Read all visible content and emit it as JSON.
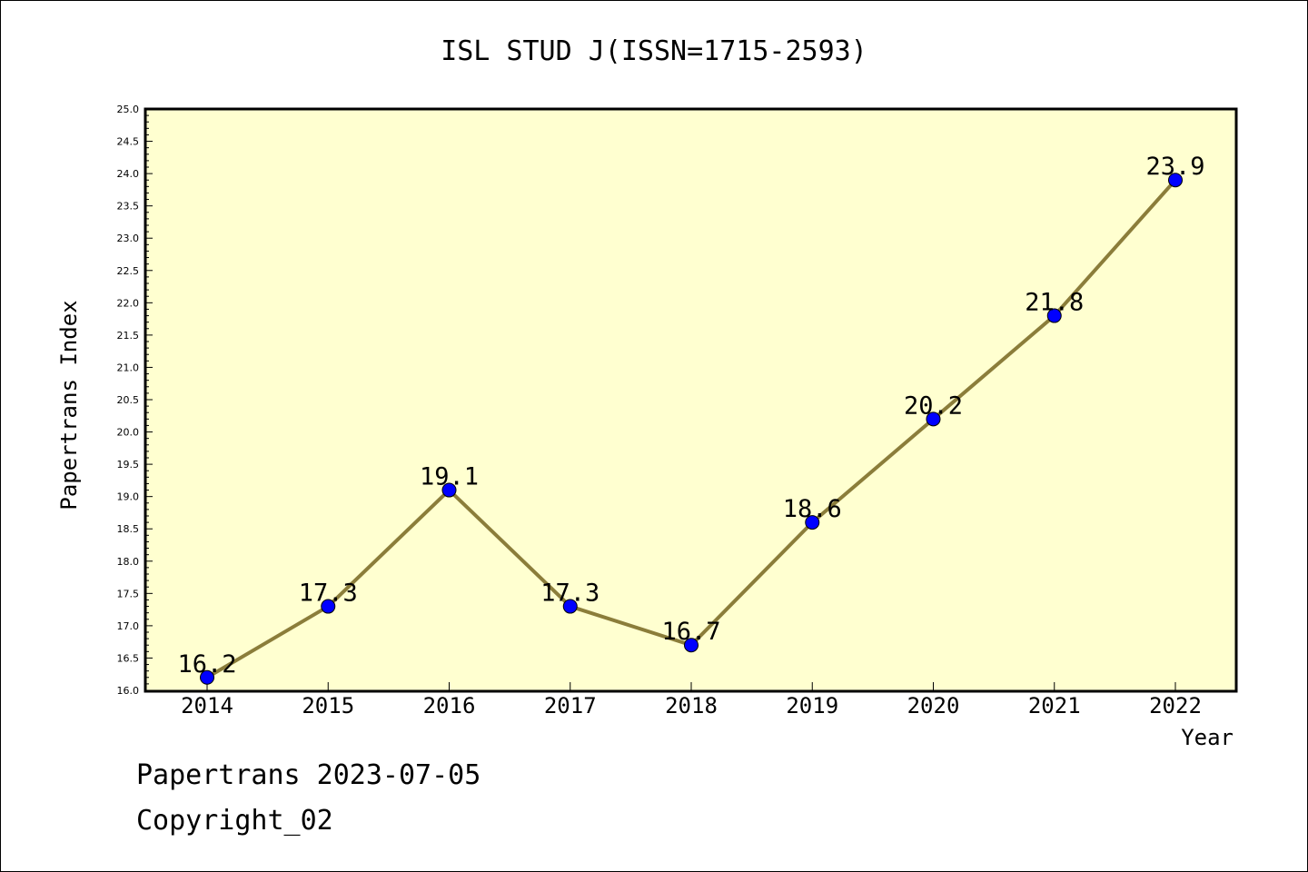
{
  "chart_data": {
    "type": "line",
    "title": "ISL STUD J(ISSN=1715-2593)",
    "xlabel": "Year",
    "ylabel": "Papertrans Index",
    "categories": [
      "2014",
      "2015",
      "2016",
      "2017",
      "2018",
      "2019",
      "2020",
      "2021",
      "2022"
    ],
    "series": [
      {
        "values": [
          16.2,
          17.3,
          19.1,
          17.3,
          16.7,
          18.6,
          20.2,
          21.8,
          23.9
        ],
        "data_labels": [
          "16.2",
          "17.3",
          "19.1",
          "17.3",
          "16.7",
          "18.6",
          "20.2",
          "21.8",
          "23.9"
        ],
        "line_color": "#8b7d3a",
        "marker_color": "#0000ff"
      }
    ],
    "ylim": [
      16.0,
      25.0
    ],
    "yticks": [
      "16.0",
      "16.5",
      "17.0",
      "17.5",
      "18.0",
      "18.5",
      "19.0",
      "19.5",
      "20.0",
      "20.5",
      "21.0",
      "21.5",
      "22.0",
      "22.5",
      "23.0",
      "23.5",
      "24.0",
      "24.5",
      "25.0"
    ],
    "plot_background": "#ffffd0",
    "grid": false,
    "legend": "none"
  },
  "footer": {
    "line1": "Papertrans 2023-07-05",
    "line2": "Copyright_02"
  }
}
